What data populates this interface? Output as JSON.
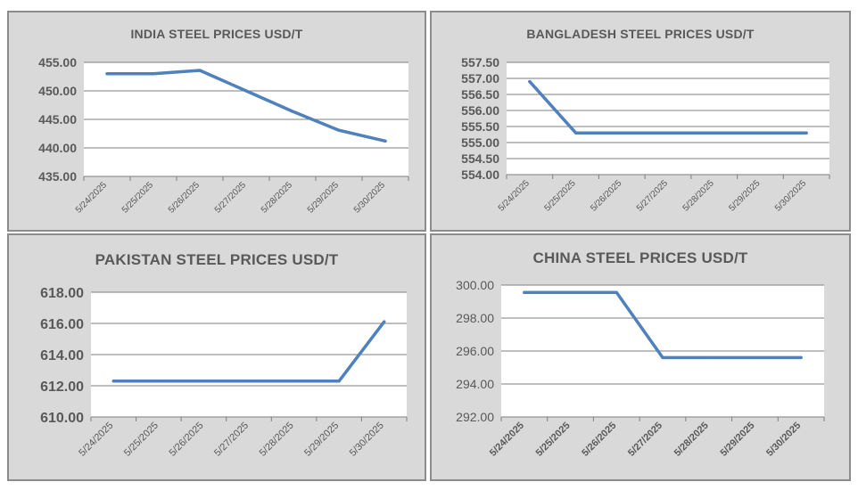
{
  "colors": {
    "line": "#4f81bd",
    "grid": "#7f7f7f",
    "plot_bg": "#ffffff",
    "panel_bg": "#d9d9d9",
    "text": "#595959"
  },
  "chart_data": [
    {
      "type": "line",
      "title": "INDIA STEEL PRICES USD/T",
      "categories": [
        "5/24/2025",
        "5/25/2025",
        "5/26/2025",
        "5/27/2025",
        "5/28/2025",
        "5/29/2025",
        "5/30/2025"
      ],
      "series": [
        {
          "values": [
            453.0,
            453.0,
            453.6,
            450.0,
            446.4,
            443.1,
            441.2
          ]
        }
      ],
      "ylim": [
        435,
        455
      ],
      "yticks": [
        "455.00",
        "450.00",
        "445.00",
        "440.00",
        "435.00"
      ],
      "ytick_values": [
        455,
        450,
        445,
        440,
        435
      ],
      "grid": true,
      "xlabel": "",
      "ylabel": ""
    },
    {
      "type": "line",
      "title": "BANGLADESH STEEL PRICES USD/T",
      "categories": [
        "5/24/2025",
        "5/25/2025",
        "5/26/2025",
        "5/27/2025",
        "5/28/2025",
        "5/29/2025",
        "5/30/2025"
      ],
      "series": [
        {
          "values": [
            556.9,
            555.3,
            555.3,
            555.3,
            555.3,
            555.3,
            555.3
          ]
        }
      ],
      "ylim": [
        554,
        557.5
      ],
      "yticks": [
        "557.50",
        "557.00",
        "556.50",
        "556.00",
        "555.50",
        "555.00",
        "554.50",
        "554.00"
      ],
      "ytick_values": [
        557.5,
        557.0,
        556.5,
        556.0,
        555.5,
        555.0,
        554.5,
        554.0
      ],
      "grid": true,
      "xlabel": "",
      "ylabel": ""
    },
    {
      "type": "line",
      "title": "PAKISTAN STEEL PRICES USD/T",
      "categories": [
        "5/24/2025",
        "5/25/2025",
        "5/26/2025",
        "5/27/2025",
        "5/28/2025",
        "5/29/2025",
        "5/30/2025"
      ],
      "series": [
        {
          "values": [
            612.3,
            612.3,
            612.3,
            612.3,
            612.3,
            612.3,
            616.1
          ]
        }
      ],
      "ylim": [
        610,
        618
      ],
      "yticks": [
        "618.00",
        "616.00",
        "614.00",
        "612.00",
        "610.00"
      ],
      "ytick_values": [
        618,
        616,
        614,
        612,
        610
      ],
      "grid": true,
      "xlabel": "",
      "ylabel": ""
    },
    {
      "type": "line",
      "title": "CHINA STEEL PRICES USD/T",
      "categories": [
        "5/24/2025",
        "5/25/2025",
        "5/26/2025",
        "5/27/2025",
        "5/28/2025",
        "5/29/2025",
        "5/30/2025"
      ],
      "series": [
        {
          "values": [
            299.55,
            299.55,
            299.55,
            295.6,
            295.6,
            295.6,
            295.6
          ]
        }
      ],
      "ylim": [
        292,
        300
      ],
      "yticks": [
        "300.00",
        "298.00",
        "296.00",
        "294.00",
        "292.00"
      ],
      "ytick_values": [
        300,
        298,
        296,
        294,
        292
      ],
      "grid": true,
      "xlabel": "",
      "ylabel": ""
    }
  ]
}
